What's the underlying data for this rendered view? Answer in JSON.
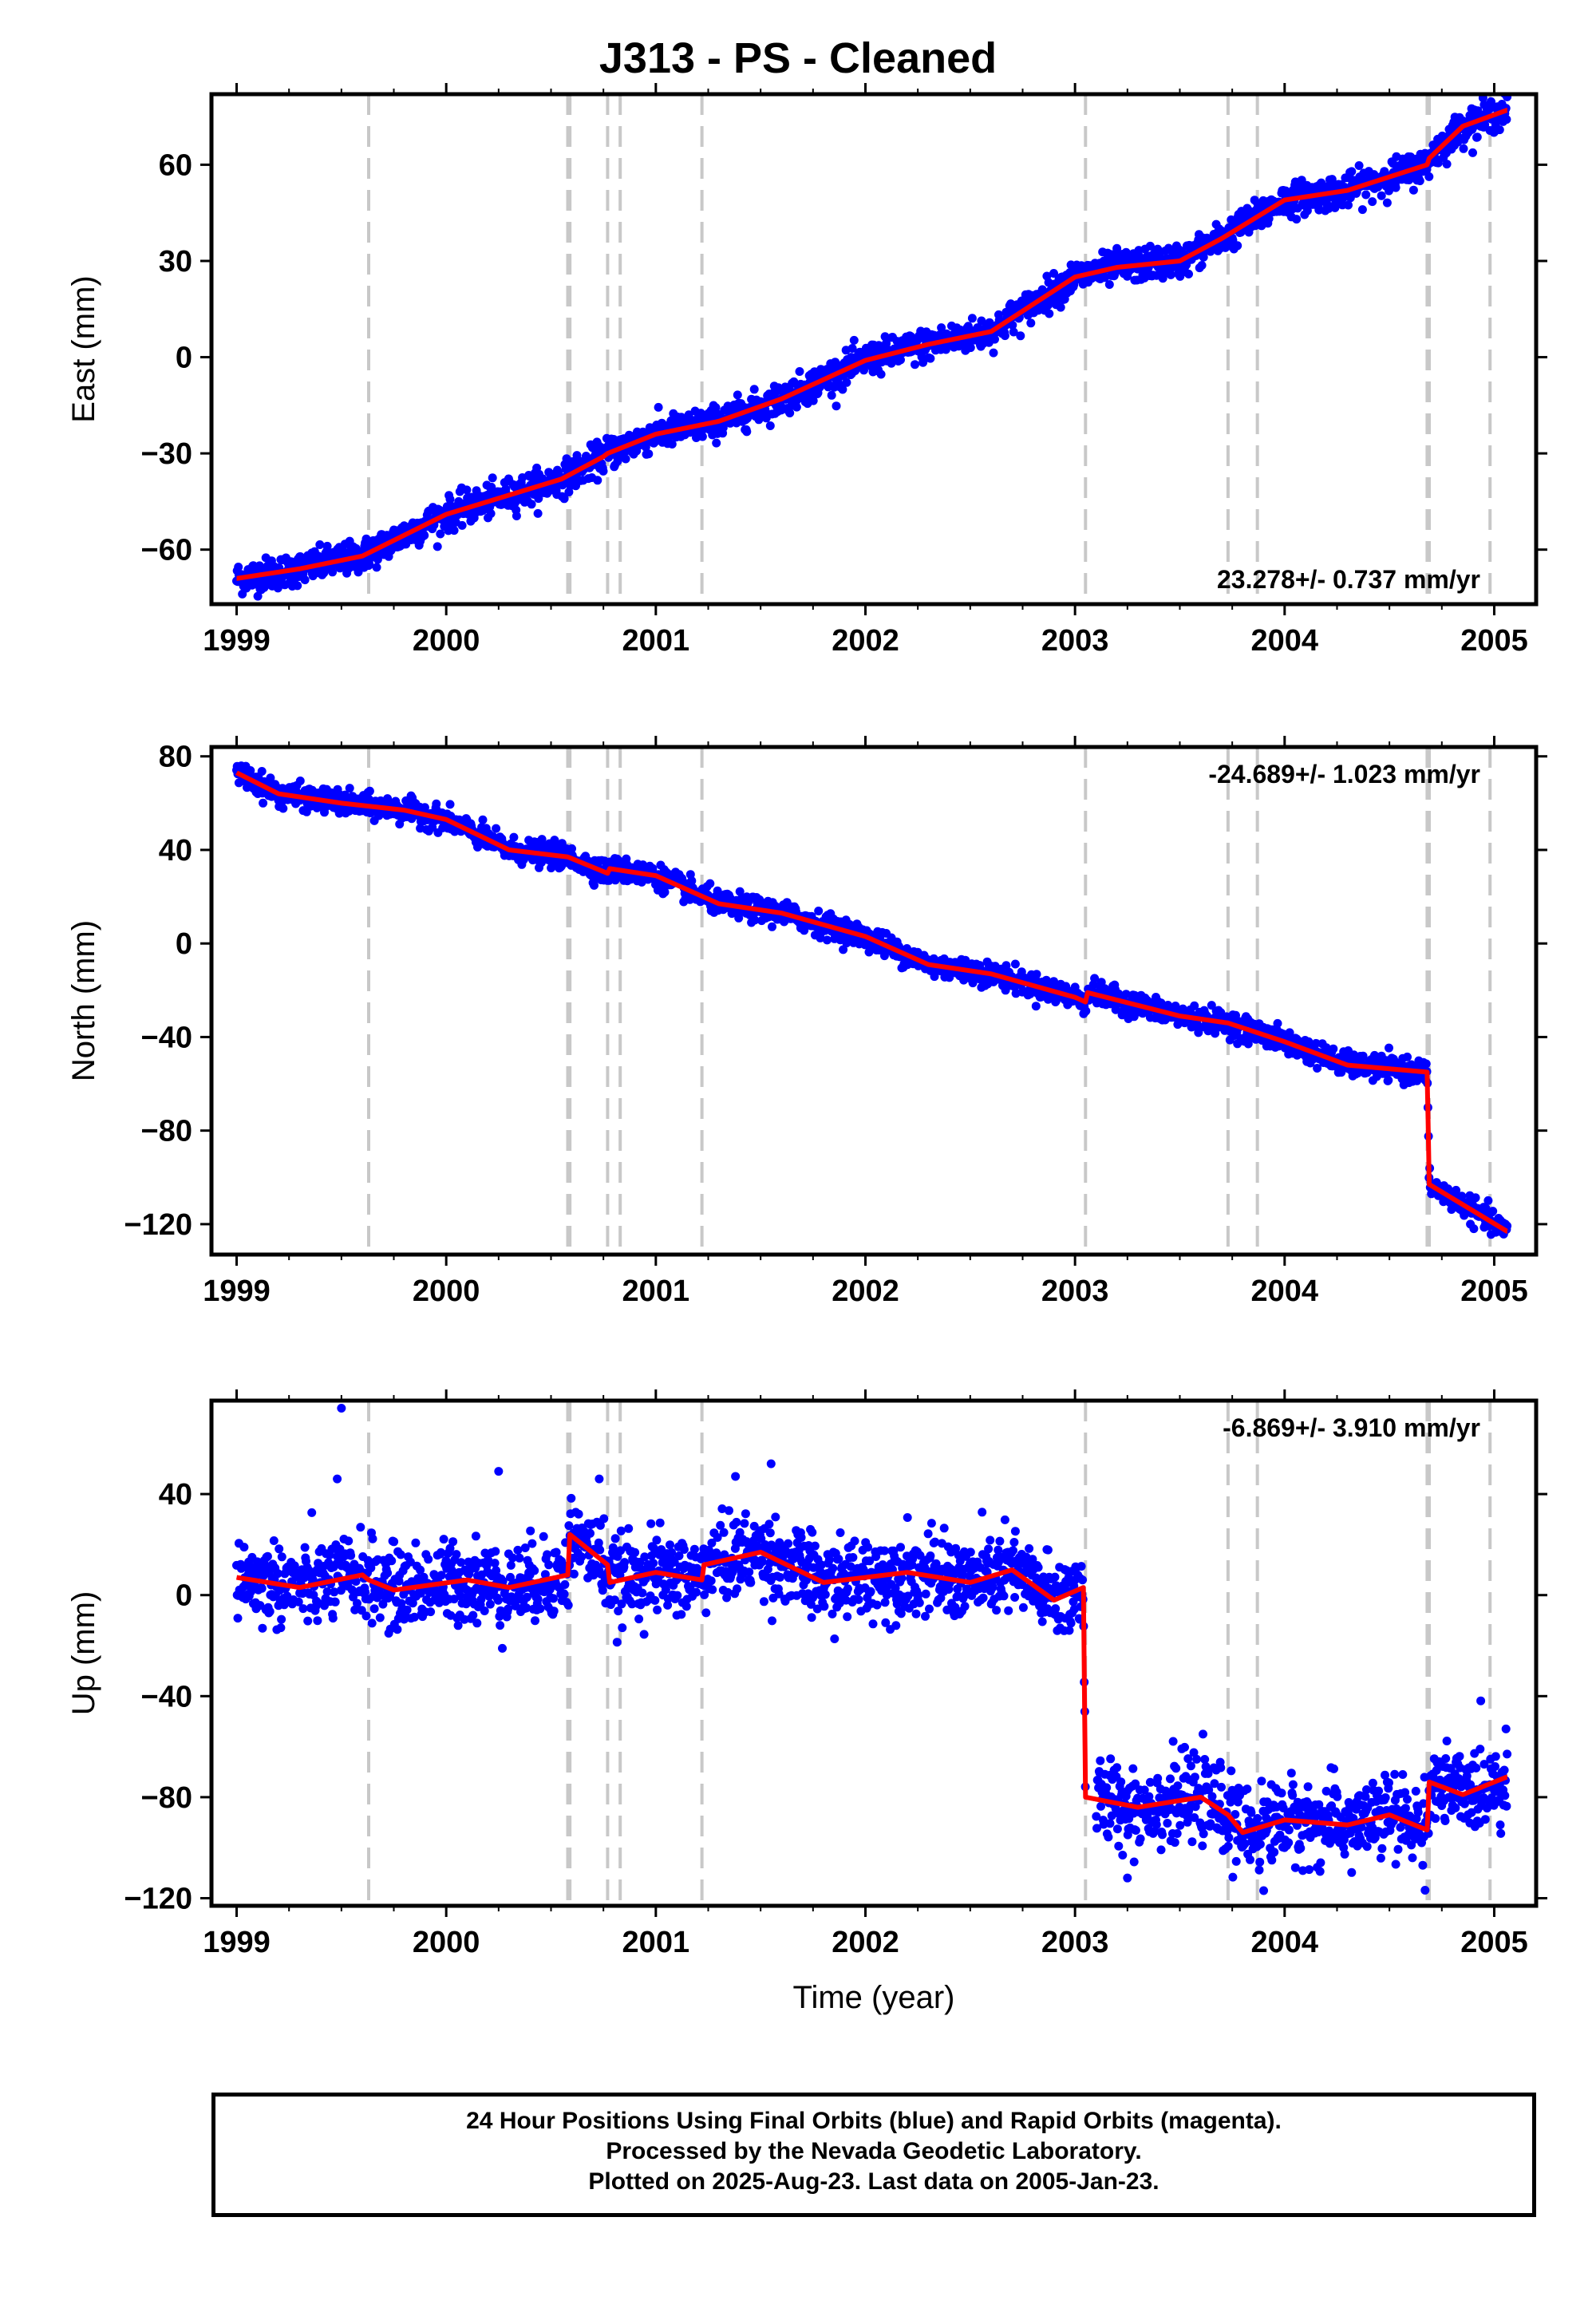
{
  "title": "J313  - PS - Cleaned",
  "footer": {
    "line1": "24 Hour Positions Using Final Orbits (blue) and Rapid Orbits (magenta).",
    "line2": "Processed by the Nevada Geodetic Laboratory.",
    "line3": "Plotted on 2025-Aug-23. Last data on 2005-Jan-23."
  },
  "colors": {
    "points": "#0000ff",
    "model": "#ff0000",
    "event_lines": "#c8c8c8",
    "frame": "#000000"
  },
  "chart_data": [
    {
      "type": "scatter",
      "name": "east",
      "ylabel": "East (mm)",
      "xlabel": "",
      "xlim": [
        1998.88,
        2005.2
      ],
      "ylim": [
        -77,
        82
      ],
      "xticks": [
        1999,
        2000,
        2001,
        2002,
        2003,
        2004,
        2005
      ],
      "yticks": [
        -60,
        -30,
        0,
        30,
        60
      ],
      "rate_label": "23.278+/- 0.737 mm/yr",
      "rate_position": "bottom-right",
      "event_lines": [
        1999.63,
        2000.58,
        2000.59,
        2000.77,
        2000.83,
        2001.22,
        2003.05,
        2003.73,
        2003.87,
        2004.68,
        2004.69,
        2004.98
      ],
      "model_knots": [
        [
          1999.0,
          -69
        ],
        [
          1999.3,
          -66
        ],
        [
          1999.6,
          -62
        ],
        [
          2000.0,
          -49
        ],
        [
          2000.3,
          -43
        ],
        [
          2000.55,
          -38
        ],
        [
          2000.75,
          -31
        ],
        [
          2000.77,
          -30
        ],
        [
          2001.0,
          -24
        ],
        [
          2001.3,
          -20
        ],
        [
          2001.6,
          -13
        ],
        [
          2002.0,
          -1
        ],
        [
          2002.3,
          4
        ],
        [
          2002.6,
          8
        ],
        [
          2003.0,
          25
        ],
        [
          2003.2,
          28
        ],
        [
          2003.5,
          30
        ],
        [
          2003.7,
          37
        ],
        [
          2004.0,
          49
        ],
        [
          2004.3,
          52
        ],
        [
          2004.68,
          60
        ],
        [
          2004.69,
          62
        ],
        [
          2004.85,
          72
        ],
        [
          2005.06,
          77
        ]
      ],
      "noise_mm": 2.5
    },
    {
      "type": "scatter",
      "name": "north",
      "ylabel": "North (mm)",
      "xlabel": "",
      "xlim": [
        1998.88,
        2005.2
      ],
      "ylim": [
        -133,
        84
      ],
      "xticks": [
        1999,
        2000,
        2001,
        2002,
        2003,
        2004,
        2005
      ],
      "yticks": [
        -120,
        -80,
        -40,
        0,
        40,
        80
      ],
      "rate_label": "-24.689+/- 1.023 mm/yr",
      "rate_position": "top-right",
      "event_lines": [
        1999.63,
        2000.58,
        2000.59,
        2000.77,
        2000.83,
        2001.22,
        2003.05,
        2003.73,
        2003.87,
        2004.68,
        2004.69,
        2004.98
      ],
      "model_knots": [
        [
          1999.0,
          73
        ],
        [
          1999.2,
          64
        ],
        [
          1999.5,
          60
        ],
        [
          1999.8,
          57
        ],
        [
          2000.0,
          53
        ],
        [
          2000.3,
          40
        ],
        [
          2000.58,
          37
        ],
        [
          2000.77,
          30
        ],
        [
          2000.78,
          32
        ],
        [
          2001.0,
          29
        ],
        [
          2001.3,
          17
        ],
        [
          2001.6,
          13
        ],
        [
          2002.0,
          3
        ],
        [
          2002.3,
          -9
        ],
        [
          2002.6,
          -13
        ],
        [
          2003.0,
          -23
        ],
        [
          2003.05,
          -25
        ],
        [
          2003.06,
          -21
        ],
        [
          2003.5,
          -31
        ],
        [
          2003.73,
          -34
        ],
        [
          2004.0,
          -42
        ],
        [
          2004.3,
          -52
        ],
        [
          2004.68,
          -55
        ],
        [
          2004.69,
          -103
        ],
        [
          2005.06,
          -123
        ]
      ],
      "noise_mm": 2.5
    },
    {
      "type": "scatter",
      "name": "up",
      "ylabel": "Up (mm)",
      "xlabel": "Time (year)",
      "xlim": [
        1998.88,
        2005.2
      ],
      "ylim": [
        -123,
        77
      ],
      "xticks": [
        1999,
        2000,
        2001,
        2002,
        2003,
        2004,
        2005
      ],
      "yticks": [
        -120,
        -80,
        -40,
        0,
        40
      ],
      "rate_label": "-6.869+/- 3.910 mm/yr",
      "rate_position": "top-right",
      "event_lines": [
        1999.63,
        2000.58,
        2000.59,
        2000.77,
        2000.83,
        2001.22,
        2003.05,
        2003.73,
        2003.87,
        2004.68,
        2004.69,
        2004.98
      ],
      "model_knots": [
        [
          1999.0,
          7
        ],
        [
          1999.3,
          3
        ],
        [
          1999.6,
          8
        ],
        [
          1999.63,
          6
        ],
        [
          1999.75,
          2
        ],
        [
          2000.1,
          6
        ],
        [
          2000.3,
          3
        ],
        [
          2000.58,
          8
        ],
        [
          2000.59,
          24
        ],
        [
          2000.77,
          12
        ],
        [
          2000.78,
          5
        ],
        [
          2001.0,
          9
        ],
        [
          2001.22,
          6
        ],
        [
          2001.23,
          12
        ],
        [
          2001.5,
          17
        ],
        [
          2001.8,
          5
        ],
        [
          2002.2,
          9
        ],
        [
          2002.5,
          5
        ],
        [
          2002.7,
          10
        ],
        [
          2002.9,
          -2
        ],
        [
          2003.04,
          3
        ],
        [
          2003.05,
          -80
        ],
        [
          2003.3,
          -84
        ],
        [
          2003.6,
          -80
        ],
        [
          2003.73,
          -87
        ],
        [
          2003.8,
          -94
        ],
        [
          2004.0,
          -89
        ],
        [
          2004.3,
          -91
        ],
        [
          2004.5,
          -87
        ],
        [
          2004.68,
          -93
        ],
        [
          2004.69,
          -74
        ],
        [
          2004.85,
          -79
        ],
        [
          2005.06,
          -72
        ]
      ],
      "outliers": [
        [
          1999.5,
          74
        ],
        [
          1999.48,
          46
        ],
        [
          2000.25,
          49
        ],
        [
          2000.73,
          46
        ],
        [
          2001.55,
          52
        ],
        [
          2001.38,
          47
        ],
        [
          2003.9,
          -117
        ],
        [
          2003.25,
          -112
        ]
      ],
      "noise_mm": 8
    }
  ]
}
